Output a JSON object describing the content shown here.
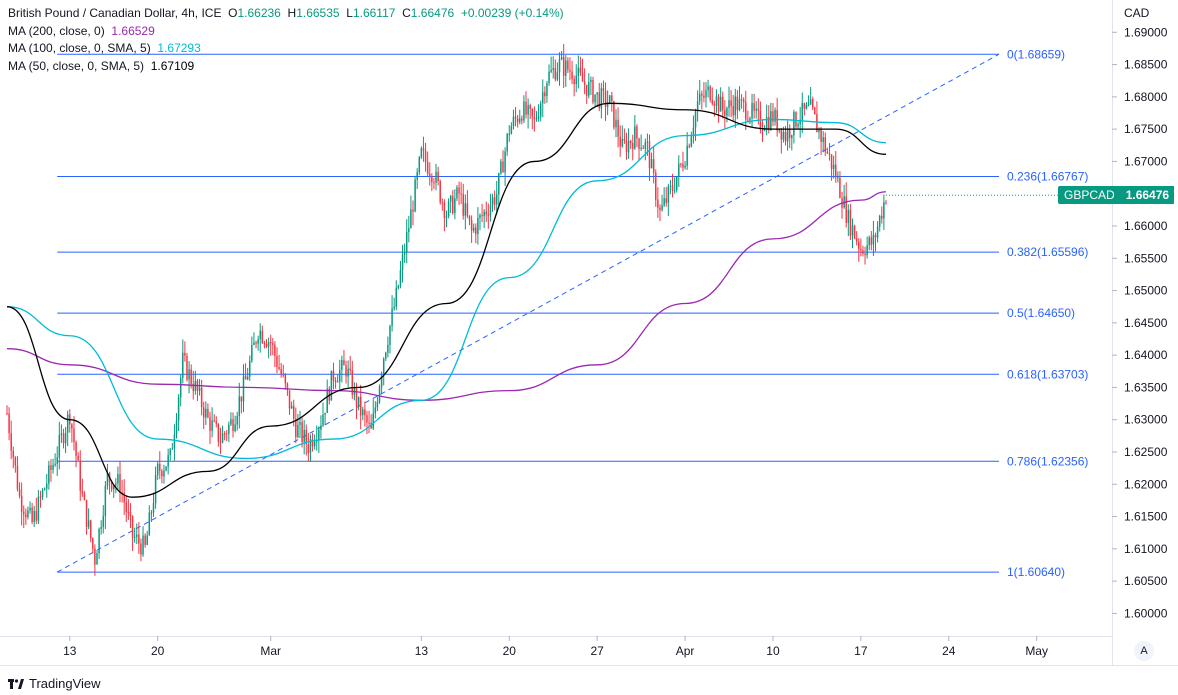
{
  "header": {
    "instrument": "British Pound / Canadian Dollar, 4h, ICE",
    "o_label": "O",
    "o": "1.66236",
    "h_label": "H",
    "h": "1.66535",
    "l_label": "L",
    "l": "1.66117",
    "c_label": "C",
    "c": "1.66476",
    "change": "+0.00239 (+0.14%)"
  },
  "indicators": [
    {
      "label": "MA (200, close, 0)",
      "value": "1.66529",
      "color": "#9c27b0"
    },
    {
      "label": "MA (100, close, 0, SMA, 5)",
      "value": "1.67293",
      "color": "#00bcd4"
    },
    {
      "label": "MA (50, close, 0, SMA, 5)",
      "value": "1.67109",
      "color": "#000000"
    }
  ],
  "axis": {
    "currency": "CAD",
    "auto_label": "A"
  },
  "price_badge": {
    "symbol": "GBPCAD",
    "value": "1.66476",
    "color": "#089981"
  },
  "branding": {
    "name": "TradingView"
  },
  "chart_data": {
    "type": "candlestick",
    "title": "British Pound / Canadian Dollar, 4h, ICE",
    "y_axis": {
      "ylim": [
        1.5965,
        1.695
      ],
      "ticks": [
        "1.69000",
        "1.68500",
        "1.68000",
        "1.67500",
        "1.67000",
        "1.66500",
        "1.66000",
        "1.65500",
        "1.65000",
        "1.64500",
        "1.64000",
        "1.63500",
        "1.63000",
        "1.62500",
        "1.62000",
        "1.61500",
        "1.61000",
        "1.60500",
        "1.60000"
      ]
    },
    "x_axis": {
      "range": [
        "2023-02-08",
        "2023-05-07"
      ],
      "ticks": [
        {
          "label": "13",
          "date": "2023-02-13"
        },
        {
          "label": "20",
          "date": "2023-02-20"
        },
        {
          "label": "Mar",
          "date": "2023-03-01"
        },
        {
          "label": "13",
          "date": "2023-03-13"
        },
        {
          "label": "20",
          "date": "2023-03-20"
        },
        {
          "label": "27",
          "date": "2023-03-27"
        },
        {
          "label": "Apr",
          "date": "2023-04-03"
        },
        {
          "label": "10",
          "date": "2023-04-10"
        },
        {
          "label": "17",
          "date": "2023-04-17"
        },
        {
          "label": "24",
          "date": "2023-04-24"
        },
        {
          "label": "May",
          "date": "2023-05-01"
        }
      ]
    },
    "colors": {
      "up": "#089981",
      "down": "#f23645",
      "fib": "#2962ff"
    },
    "price_path": [
      [
        "2023-02-08",
        1.631
      ],
      [
        "2023-02-09",
        1.618
      ],
      [
        "2023-02-10",
        1.614
      ],
      [
        "2023-02-12",
        1.625
      ],
      [
        "2023-02-13",
        1.631
      ],
      [
        "2023-02-14",
        1.618
      ],
      [
        "2023-02-15",
        1.6085
      ],
      [
        "2023-02-16",
        1.621
      ],
      [
        "2023-02-17",
        1.62
      ],
      [
        "2023-02-18",
        1.612
      ],
      [
        "2023-02-19",
        1.61
      ],
      [
        "2023-02-20",
        1.622
      ],
      [
        "2023-02-21",
        1.624
      ],
      [
        "2023-02-22",
        1.639
      ],
      [
        "2023-02-23",
        1.635
      ],
      [
        "2023-02-24",
        1.63
      ],
      [
        "2023-02-25",
        1.627
      ],
      [
        "2023-02-26",
        1.63
      ],
      [
        "2023-02-27",
        1.636
      ],
      [
        "2023-02-28",
        1.644
      ],
      [
        "2023-03-01",
        1.642
      ],
      [
        "2023-03-02",
        1.636
      ],
      [
        "2023-03-03",
        1.629
      ],
      [
        "2023-03-04",
        1.626
      ],
      [
        "2023-03-05",
        1.63
      ],
      [
        "2023-03-06",
        1.637
      ],
      [
        "2023-03-07",
        1.638
      ],
      [
        "2023-03-08",
        1.632
      ],
      [
        "2023-03-09",
        1.628
      ],
      [
        "2023-03-10",
        1.64
      ],
      [
        "2023-03-11",
        1.649
      ],
      [
        "2023-03-12",
        1.66
      ],
      [
        "2023-03-13",
        1.671
      ],
      [
        "2023-03-14",
        1.668
      ],
      [
        "2023-03-15",
        1.662
      ],
      [
        "2023-03-16",
        1.665
      ],
      [
        "2023-03-17",
        1.659
      ],
      [
        "2023-03-18",
        1.662
      ],
      [
        "2023-03-19",
        1.665
      ],
      [
        "2023-03-20",
        1.675
      ],
      [
        "2023-03-21",
        1.678
      ],
      [
        "2023-03-22",
        1.676
      ],
      [
        "2023-03-23",
        1.683
      ],
      [
        "2023-03-24",
        1.685
      ],
      [
        "2023-03-25",
        1.684
      ],
      [
        "2023-03-26",
        1.682
      ],
      [
        "2023-03-27",
        1.68
      ],
      [
        "2023-03-28",
        1.679
      ],
      [
        "2023-03-29",
        1.672
      ],
      [
        "2023-03-30",
        1.674
      ],
      [
        "2023-03-31",
        1.672
      ],
      [
        "2023-04-01",
        1.662
      ],
      [
        "2023-04-02",
        1.666
      ],
      [
        "2023-04-03",
        1.671
      ],
      [
        "2023-04-04",
        1.679
      ],
      [
        "2023-04-05",
        1.681
      ],
      [
        "2023-04-06",
        1.678
      ],
      [
        "2023-04-07",
        1.679
      ],
      [
        "2023-04-08",
        1.678
      ],
      [
        "2023-04-09",
        1.676
      ],
      [
        "2023-04-10",
        1.677
      ],
      [
        "2023-04-11",
        1.674
      ],
      [
        "2023-04-12",
        1.677
      ],
      [
        "2023-04-13",
        1.678
      ],
      [
        "2023-04-14",
        1.673
      ],
      [
        "2023-04-15",
        1.668
      ],
      [
        "2023-04-16",
        1.661
      ],
      [
        "2023-04-17",
        1.6565
      ],
      [
        "2023-04-18",
        1.6575
      ],
      [
        "2023-04-19",
        1.6648
      ]
    ],
    "moving_averages": [
      {
        "name": "MA (200, close, 0)",
        "color": "#9c27b0",
        "points": [
          [
            "2023-02-08",
            1.641
          ],
          [
            "2023-02-13",
            1.6385
          ],
          [
            "2023-02-20",
            1.6355
          ],
          [
            "2023-02-27",
            1.635
          ],
          [
            "2023-03-06",
            1.6345
          ],
          [
            "2023-03-13",
            1.633
          ],
          [
            "2023-03-20",
            1.6345
          ],
          [
            "2023-03-27",
            1.6385
          ],
          [
            "2023-04-03",
            1.648
          ],
          [
            "2023-04-10",
            1.658
          ],
          [
            "2023-04-17",
            1.664
          ],
          [
            "2023-04-19",
            1.6653
          ]
        ]
      },
      {
        "name": "MA (100, close, 0, SMA, 5)",
        "color": "#00bcd4",
        "points": [
          [
            "2023-02-08",
            1.6475
          ],
          [
            "2023-02-13",
            1.643
          ],
          [
            "2023-02-20",
            1.627
          ],
          [
            "2023-02-27",
            1.624
          ],
          [
            "2023-03-06",
            1.627
          ],
          [
            "2023-03-13",
            1.633
          ],
          [
            "2023-03-20",
            1.652
          ],
          [
            "2023-03-27",
            1.667
          ],
          [
            "2023-04-03",
            1.674
          ],
          [
            "2023-04-10",
            1.6765
          ],
          [
            "2023-04-15",
            1.676
          ],
          [
            "2023-04-19",
            1.6729
          ]
        ]
      },
      {
        "name": "MA (50, close, 0, SMA, 5)",
        "color": "#000000",
        "points": [
          [
            "2023-02-08",
            1.6475
          ],
          [
            "2023-02-13",
            1.63
          ],
          [
            "2023-02-18",
            1.618
          ],
          [
            "2023-02-24",
            1.622
          ],
          [
            "2023-03-01",
            1.629
          ],
          [
            "2023-03-08",
            1.635
          ],
          [
            "2023-03-15",
            1.648
          ],
          [
            "2023-03-22",
            1.67
          ],
          [
            "2023-03-28",
            1.679
          ],
          [
            "2023-04-03",
            1.678
          ],
          [
            "2023-04-10",
            1.675
          ],
          [
            "2023-04-15",
            1.675
          ],
          [
            "2023-04-19",
            1.6711
          ]
        ]
      }
    ],
    "trendline": {
      "from": [
        "2023-02-12",
        1.6064
      ],
      "to": [
        "2023-04-28",
        1.6866
      ],
      "style": "dashed",
      "color": "#2962ff"
    },
    "fibonacci": [
      {
        "label": "0(1.68659)",
        "value": 1.68659
      },
      {
        "label": "0.236(1.66767)",
        "value": 1.66767
      },
      {
        "label": "0.382(1.65596)",
        "value": 1.65596
      },
      {
        "label": "0.5(1.64650)",
        "value": 1.6465
      },
      {
        "label": "0.618(1.63703)",
        "value": 1.63703
      },
      {
        "label": "0.786(1.62356)",
        "value": 1.62356
      },
      {
        "label": "1(1.60640)",
        "value": 1.6064
      }
    ],
    "fib_range": {
      "start": "2023-02-12",
      "end": "2023-04-28"
    },
    "last_price": 1.66476,
    "grid": "none",
    "legend": "top-left"
  }
}
